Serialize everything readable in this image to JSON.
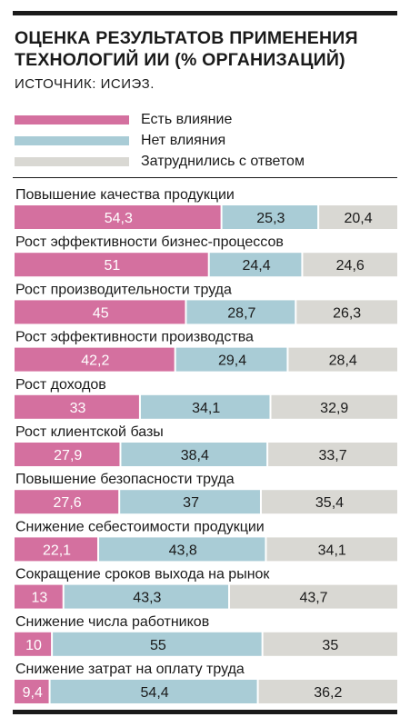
{
  "title": "ОЦЕНКА РЕЗУЛЬТАТОВ ПРИМЕНЕНИЯ ТЕХНОЛОГИЙ ИИ (% ОРГАНИЗАЦИЙ)",
  "source": "ИСТОЧНИК: ИСИЭЗ.",
  "colors": {
    "effect": "#d4709f",
    "no_effect": "#a9ccd6",
    "undecided": "#d9d8d3",
    "text_dark": "#1a1a1a",
    "text_light": "#ffffff"
  },
  "chart_data": {
    "type": "bar",
    "orientation": "horizontal",
    "stacked": true,
    "xlim": [
      0,
      100
    ],
    "legend_position": "top",
    "categories": [
      "Повышение качества продукции",
      "Рост эффективности бизнес-процессов",
      "Рост производительности труда",
      "Рост эффективности производства",
      "Рост доходов",
      "Рост клиентской базы",
      "Повышение безопасности труда",
      "Снижение себестоимости продукции",
      "Сокращение сроков выхода на рынок",
      "Снижение числа работников",
      "Снижение затрат на оплату труда"
    ],
    "series": [
      {
        "name": "Есть влияние",
        "color": "#d4709f",
        "values": [
          54.3,
          51,
          45,
          42.2,
          33,
          27.9,
          27.6,
          22.1,
          13,
          10,
          9.4
        ],
        "labels": [
          "54,3",
          "51",
          "45",
          "42,2",
          "33",
          "27,9",
          "27,6",
          "22,1",
          "13",
          "10",
          "9,4"
        ]
      },
      {
        "name": "Нет влияния",
        "color": "#a9ccd6",
        "values": [
          25.3,
          24.4,
          28.7,
          29.4,
          34.1,
          38.4,
          37,
          43.8,
          43.3,
          55,
          54.4
        ],
        "labels": [
          "25,3",
          "24,4",
          "28,7",
          "29,4",
          "34,1",
          "38,4",
          "37",
          "43,8",
          "43,3",
          "55",
          "54,4"
        ]
      },
      {
        "name": "Затруднились с ответом",
        "color": "#d9d8d3",
        "values": [
          20.4,
          24.6,
          26.3,
          28.4,
          32.9,
          33.7,
          35.4,
          34.1,
          43.7,
          35,
          36.2
        ],
        "labels": [
          "20,4",
          "24,6",
          "26,3",
          "28,4",
          "32,9",
          "33,7",
          "35,4",
          "34,1",
          "43,7",
          "35",
          "36,2"
        ]
      }
    ]
  }
}
